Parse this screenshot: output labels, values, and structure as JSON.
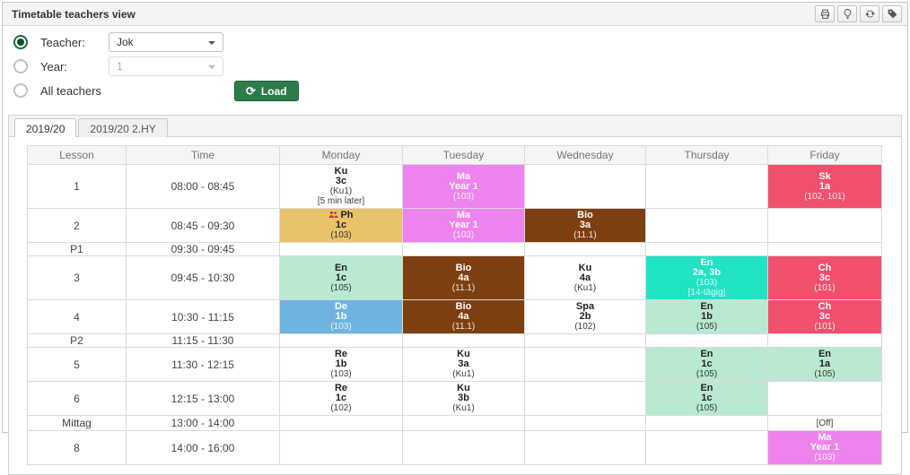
{
  "panel": {
    "title": "Timetable teachers view"
  },
  "toolbar": {
    "buttons": [
      "print-icon",
      "lightbulb-icon",
      "refresh-icon",
      "tag-icon"
    ]
  },
  "filters": {
    "teacher": {
      "label": "Teacher:",
      "value": "Jok",
      "selected": true
    },
    "year": {
      "label": "Year:",
      "value": "1",
      "selected": false,
      "disabled": true
    },
    "all_teachers": {
      "label": "All teachers",
      "selected": false
    },
    "load_label": "Load"
  },
  "tabs": [
    {
      "label": "2019/20",
      "active": true
    },
    {
      "label": "2019/20 2.HY",
      "active": false
    }
  ],
  "colors": {
    "white": "#ffffff",
    "violet": "#ee82ee",
    "brown": "#7d3f10",
    "gold": "#e8c36a",
    "mint": "#b9e9d1",
    "blue": "#6fb4e1",
    "turquoise": "#1fe3c3",
    "red": "#f0506e",
    "accent_green": "#2b7d49",
    "group_icon_red": "#c0392b"
  },
  "timetable": {
    "headers": [
      "Lesson",
      "Time",
      "Monday",
      "Tuesday",
      "Wednesday",
      "Thursday",
      "Friday"
    ],
    "rows": [
      {
        "lesson": "1",
        "time": "08:00 - 08:45",
        "compact": false,
        "cells": [
          {
            "lines": [
              "Ku",
              "3c",
              "(Ku1)",
              "[5 min later]"
            ],
            "bg": "white",
            "fg": "dark"
          },
          {
            "lines": [
              "Ma",
              "Year 1",
              "(103)"
            ],
            "bg": "violet",
            "fg": "light"
          },
          null,
          null,
          {
            "lines": [
              "Sk",
              "1a",
              "(102, 101)"
            ],
            "bg": "red",
            "fg": "light"
          }
        ]
      },
      {
        "lesson": "2",
        "time": "08:45 - 09:30",
        "compact": false,
        "cells": [
          {
            "lines": [
              "Ph",
              "1c",
              "(103)"
            ],
            "bg": "gold",
            "fg": "dark",
            "icon": "group-icon"
          },
          {
            "lines": [
              "Ma",
              "Year 1",
              "(103)"
            ],
            "bg": "violet",
            "fg": "light"
          },
          {
            "lines": [
              "Bio",
              "3a",
              "(11.1)"
            ],
            "bg": "brown",
            "fg": "light"
          },
          null,
          null
        ]
      },
      {
        "lesson": "P1",
        "time": "09:30 - 09:45",
        "compact": true,
        "cells": [
          null,
          null,
          null,
          null,
          null
        ]
      },
      {
        "lesson": "3",
        "time": "09:45 - 10:30",
        "compact": false,
        "cells": [
          {
            "lines": [
              "En",
              "1c",
              "(105)"
            ],
            "bg": "mint",
            "fg": "dark"
          },
          {
            "lines": [
              "Bio",
              "4a",
              "(11.1)"
            ],
            "bg": "brown",
            "fg": "light"
          },
          {
            "lines": [
              "Ku",
              "4a",
              "(Ku1)"
            ],
            "bg": "white",
            "fg": "dark"
          },
          {
            "lines": [
              "En",
              "2a, 3b",
              "(103)",
              "[14-tägig]"
            ],
            "bg": "turquoise",
            "fg": "light"
          },
          {
            "lines": [
              "Ch",
              "3c",
              "(101)"
            ],
            "bg": "red",
            "fg": "light"
          }
        ]
      },
      {
        "lesson": "4",
        "time": "10:30 - 11:15",
        "compact": false,
        "cells": [
          {
            "lines": [
              "De",
              "1b",
              "(103)"
            ],
            "bg": "blue",
            "fg": "light"
          },
          {
            "lines": [
              "Bio",
              "4a",
              "(11.1)"
            ],
            "bg": "brown",
            "fg": "light"
          },
          {
            "lines": [
              "Spa",
              "2b",
              "(102)"
            ],
            "bg": "white",
            "fg": "dark"
          },
          {
            "lines": [
              "En",
              "1b",
              "(105)"
            ],
            "bg": "mint",
            "fg": "dark"
          },
          {
            "lines": [
              "Ch",
              "3c",
              "(101)"
            ],
            "bg": "red",
            "fg": "light"
          }
        ]
      },
      {
        "lesson": "P2",
        "time": "11:15 - 11:30",
        "compact": true,
        "cells": [
          null,
          null,
          null,
          null,
          null
        ]
      },
      {
        "lesson": "5",
        "time": "11:30 - 12:15",
        "compact": false,
        "cells": [
          {
            "lines": [
              "Re",
              "1b",
              "(103)"
            ],
            "bg": "white",
            "fg": "dark"
          },
          {
            "lines": [
              "Ku",
              "3a",
              "(Ku1)"
            ],
            "bg": "white",
            "fg": "dark"
          },
          null,
          {
            "lines": [
              "En",
              "1c",
              "(105)"
            ],
            "bg": "mint",
            "fg": "dark"
          },
          {
            "lines": [
              "En",
              "1a",
              "(105)"
            ],
            "bg": "mint",
            "fg": "dark"
          }
        ]
      },
      {
        "lesson": "6",
        "time": "12:15 - 13:00",
        "compact": false,
        "cells": [
          {
            "lines": [
              "Re",
              "1c",
              "(102)"
            ],
            "bg": "white",
            "fg": "dark"
          },
          {
            "lines": [
              "Ku",
              "3b",
              "(Ku1)"
            ],
            "bg": "white",
            "fg": "dark"
          },
          null,
          {
            "lines": [
              "En",
              "1c",
              "(105)"
            ],
            "bg": "mint",
            "fg": "dark"
          },
          null
        ]
      },
      {
        "lesson": "Mittag",
        "time": "13:00 - 14:00",
        "compact": false,
        "cells": [
          null,
          null,
          null,
          null,
          {
            "lines": [
              "[Off]"
            ],
            "bg": "white",
            "fg": "dark"
          }
        ]
      },
      {
        "lesson": "8",
        "time": "14:00 - 16:00",
        "compact": false,
        "cells": [
          null,
          null,
          null,
          null,
          {
            "lines": [
              "Ma",
              "Year 1",
              "(103)"
            ],
            "bg": "violet",
            "fg": "light"
          }
        ]
      }
    ]
  }
}
